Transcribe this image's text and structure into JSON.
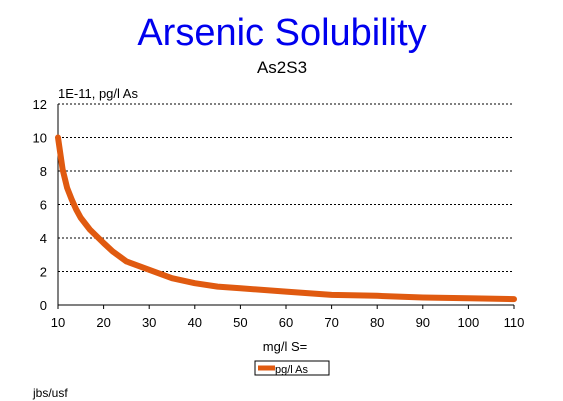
{
  "chart_data": {
    "type": "line",
    "title": "Arsenic Solubility",
    "subtitle": "As2S3",
    "ylabel": "1E-11, pg/l As",
    "xlabel": "mg/l S=",
    "xlim": [
      10,
      110
    ],
    "ylim": [
      0,
      12
    ],
    "xticks": [
      10,
      20,
      30,
      40,
      50,
      60,
      70,
      80,
      90,
      100,
      110
    ],
    "yticks": [
      0,
      2,
      4,
      6,
      8,
      10,
      12
    ],
    "grid": "horizontal dotted",
    "legend_position": "bottom-center",
    "series": [
      {
        "name": "pg/l As",
        "color": "#e05a10",
        "x": [
          10,
          11,
          12,
          13,
          14,
          15,
          17,
          20,
          22,
          25,
          30,
          35,
          40,
          45,
          50,
          60,
          70,
          80,
          90,
          100,
          110
        ],
        "y": [
          10.0,
          8.1,
          7.0,
          6.3,
          5.7,
          5.2,
          4.5,
          3.7,
          3.2,
          2.6,
          2.1,
          1.6,
          1.3,
          1.1,
          1.0,
          0.8,
          0.6,
          0.55,
          0.45,
          0.4,
          0.35
        ]
      }
    ]
  },
  "footer": "jbs/usf",
  "colors": {
    "title": "#0000ee",
    "grid": "#000000"
  }
}
